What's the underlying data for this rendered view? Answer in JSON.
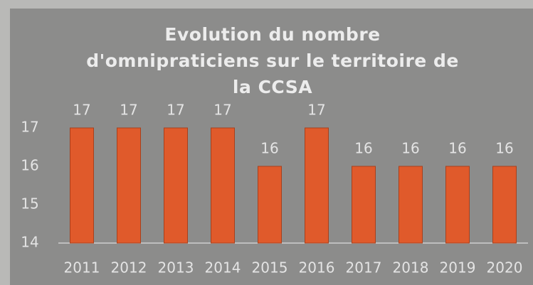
{
  "chart_data": {
    "type": "bar",
    "title": "Evolution du nombre\nd'omnipraticiens sur le territoire de\nla CCSA",
    "categories": [
      "2011",
      "2012",
      "2013",
      "2014",
      "2015",
      "2016",
      "2017",
      "2018",
      "2019",
      "2020"
    ],
    "values": [
      17,
      17,
      17,
      17,
      16,
      17,
      16,
      16,
      16,
      16
    ],
    "color": "#e05a2b",
    "ylim": [
      14,
      17
    ],
    "yticks": [
      14,
      15,
      16,
      17
    ],
    "grid": false
  }
}
